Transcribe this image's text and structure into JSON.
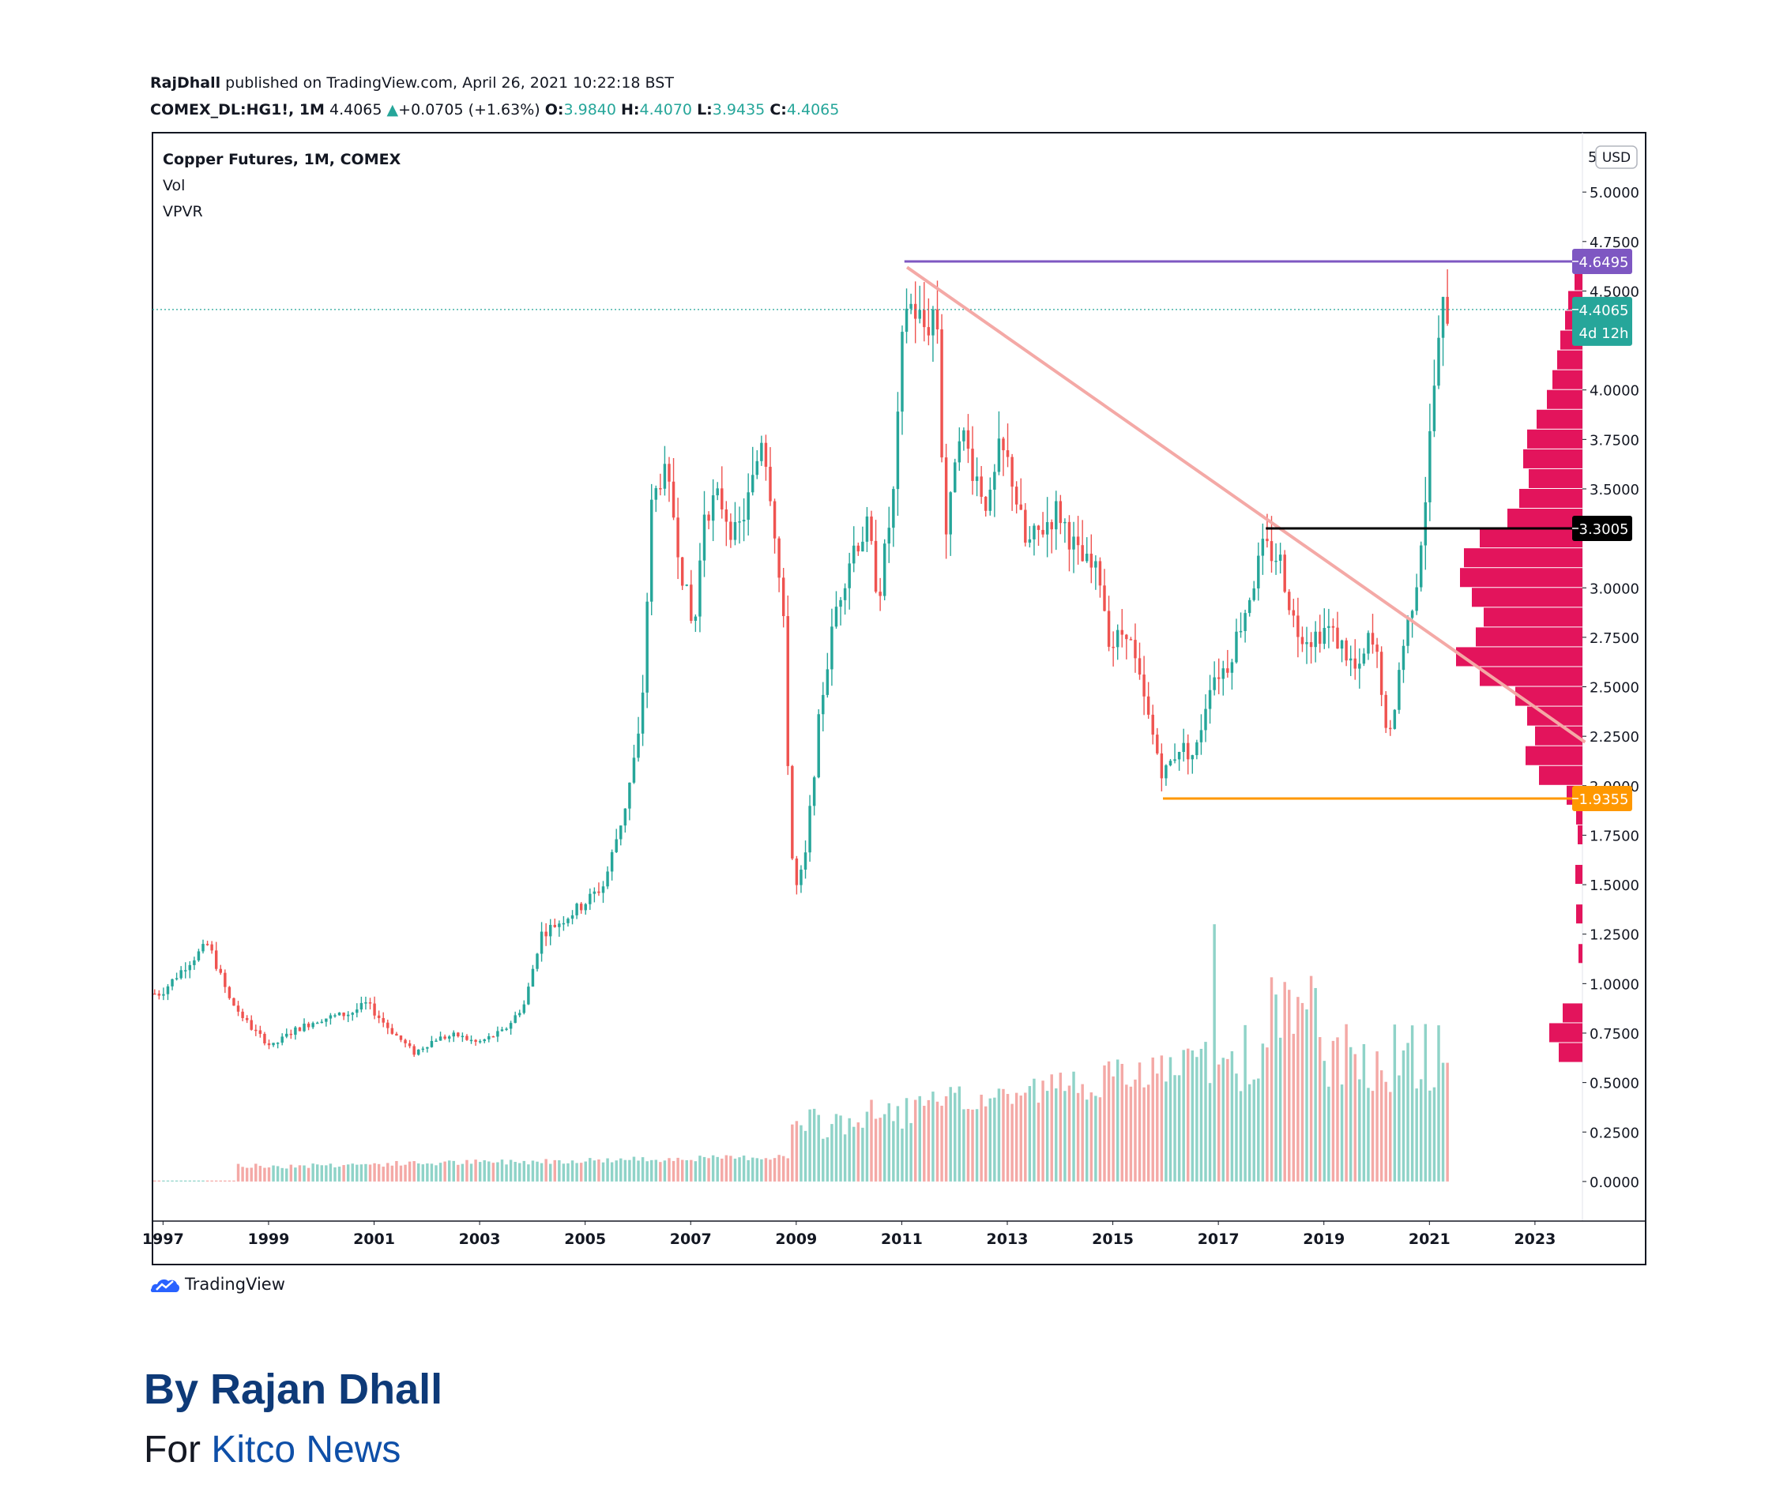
{
  "header": {
    "author": "RajDhall",
    "published_text": "published on TradingView.com, April 26, 2021 10:22:18 BST",
    "symbol": "COMEX_DL:HG1!, 1M",
    "last": "4.4065",
    "change": "+0.0705 (+1.63%)",
    "o_label": "O:",
    "o_value": "3.9840",
    "h_label": "H:",
    "h_value": "4.4070",
    "l_label": "L:",
    "l_value": "3.9435",
    "c_label": "C:",
    "c_value": "4.4065"
  },
  "panes": {
    "main": "Copper Futures, 1M, COMEX",
    "vol": "Vol",
    "vpvr": "VPVR"
  },
  "currency": "USD",
  "currency_tick": "5",
  "branding": "TradingView",
  "byline": "By Rajan Dhall",
  "for_prefix": "For ",
  "for_outlet": "Kitco News",
  "colors": {
    "up": "#26a69a",
    "down": "#ef5350",
    "vol_up": "#8fd3c8",
    "vol_down": "#f4a9a6",
    "vpvr": "#e3145c",
    "resistance": "#7e57c2",
    "support": "#ff9800",
    "pivot": "#000000",
    "trendline": "#f4a9a6"
  },
  "chart_data": {
    "type": "candlestick",
    "title": "Copper Futures, 1M, COMEX",
    "y_unit": "USD",
    "y_ticks": [
      "5.0000",
      "4.7500",
      "4.5000",
      "4.0000",
      "3.7500",
      "3.5000",
      "3.0000",
      "2.7500",
      "2.5000",
      "2.2500",
      "2.0000",
      "1.7500",
      "1.5000",
      "1.2500",
      "1.0000",
      "0.7500",
      "0.5000",
      "0.2500",
      "0.0000"
    ],
    "x_ticks": [
      "1997",
      "1999",
      "2001",
      "2003",
      "2005",
      "2007",
      "2009",
      "2011",
      "2013",
      "2015",
      "2017",
      "2019",
      "2021",
      "2023"
    ],
    "ylim": [
      -0.2,
      5.3
    ],
    "price_labels": [
      {
        "value": "4.6495",
        "kind": "resistance"
      },
      {
        "value": "4.4065",
        "kind": "last",
        "sub": "4d 12h"
      },
      {
        "value": "3.3005",
        "kind": "pivot"
      },
      {
        "value": "1.9355",
        "kind": "support"
      }
    ],
    "price_path": [
      [
        1997.0,
        0.95
      ],
      [
        1997.5,
        1.1
      ],
      [
        1997.9,
        1.2
      ],
      [
        1998.3,
        0.92
      ],
      [
        1998.7,
        0.78
      ],
      [
        1999.1,
        0.68
      ],
      [
        1999.5,
        0.76
      ],
      [
        2000.0,
        0.82
      ],
      [
        2000.6,
        0.85
      ],
      [
        2000.9,
        0.9
      ],
      [
        2001.3,
        0.78
      ],
      [
        2001.8,
        0.65
      ],
      [
        2002.2,
        0.72
      ],
      [
        2002.6,
        0.74
      ],
      [
        2003.0,
        0.7
      ],
      [
        2003.5,
        0.76
      ],
      [
        2003.9,
        0.9
      ],
      [
        2004.2,
        1.25
      ],
      [
        2004.6,
        1.32
      ],
      [
        2005.0,
        1.4
      ],
      [
        2005.4,
        1.5
      ],
      [
        2005.8,
        1.9
      ],
      [
        2006.1,
        2.3
      ],
      [
        2006.3,
        3.4
      ],
      [
        2006.5,
        3.6
      ],
      [
        2006.7,
        3.4
      ],
      [
        2006.9,
        3.05
      ],
      [
        2007.1,
        2.75
      ],
      [
        2007.3,
        3.4
      ],
      [
        2007.6,
        3.45
      ],
      [
        2007.9,
        3.25
      ],
      [
        2008.2,
        3.5
      ],
      [
        2008.4,
        3.8
      ],
      [
        2008.6,
        3.4
      ],
      [
        2008.8,
        2.8
      ],
      [
        2008.9,
        2.0
      ],
      [
        2009.0,
        1.45
      ],
      [
        2009.2,
        1.6
      ],
      [
        2009.5,
        2.4
      ],
      [
        2009.8,
        2.9
      ],
      [
        2010.1,
        3.2
      ],
      [
        2010.4,
        3.3
      ],
      [
        2010.6,
        2.95
      ],
      [
        2010.9,
        3.5
      ],
      [
        2011.1,
        4.45
      ],
      [
        2011.3,
        4.4
      ],
      [
        2011.5,
        4.3
      ],
      [
        2011.7,
        4.45
      ],
      [
        2011.8,
        3.7
      ],
      [
        2011.9,
        3.2
      ],
      [
        2012.1,
        3.85
      ],
      [
        2012.4,
        3.6
      ],
      [
        2012.7,
        3.4
      ],
      [
        2012.9,
        3.7
      ],
      [
        2013.1,
        3.6
      ],
      [
        2013.4,
        3.2
      ],
      [
        2013.7,
        3.3
      ],
      [
        2014.0,
        3.4
      ],
      [
        2014.4,
        3.15
      ],
      [
        2014.8,
        3.05
      ],
      [
        2015.0,
        2.7
      ],
      [
        2015.3,
        2.8
      ],
      [
        2015.7,
        2.35
      ],
      [
        2016.0,
        2.05
      ],
      [
        2016.3,
        2.2
      ],
      [
        2016.6,
        2.15
      ],
      [
        2016.9,
        2.55
      ],
      [
        2017.2,
        2.6
      ],
      [
        2017.5,
        2.85
      ],
      [
        2017.9,
        3.2
      ],
      [
        2018.2,
        3.15
      ],
      [
        2018.5,
        2.8
      ],
      [
        2018.8,
        2.75
      ],
      [
        2019.1,
        2.8
      ],
      [
        2019.4,
        2.7
      ],
      [
        2019.7,
        2.55
      ],
      [
        2019.9,
        2.75
      ],
      [
        2020.1,
        2.6
      ],
      [
        2020.25,
        2.15
      ],
      [
        2020.5,
        2.65
      ],
      [
        2020.8,
        3.05
      ],
      [
        2021.0,
        3.55
      ],
      [
        2021.1,
        3.95
      ],
      [
        2021.3,
        4.4
      ]
    ],
    "volume_profile_note": "VPVR histogram at right edge",
    "xlim": [
      1996.8,
      2023.9
    ]
  }
}
